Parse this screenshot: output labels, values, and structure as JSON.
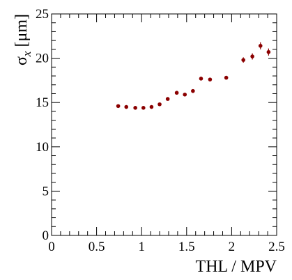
{
  "chart_data": {
    "type": "scatter",
    "xlabel": "THL / MPV",
    "ylabel": {
      "symbol": "σ",
      "subscript": "x",
      "unit": "[μm]"
    },
    "xlim": [
      0,
      2.5
    ],
    "ylim": [
      0,
      25
    ],
    "x_ticks": [
      "0",
      "0.5",
      "1",
      "1.5",
      "2",
      "2.5"
    ],
    "x_tick_values": [
      0,
      0.5,
      1,
      1.5,
      2,
      2.5
    ],
    "y_ticks": [
      "0",
      "5",
      "10",
      "15",
      "20",
      "25"
    ],
    "y_tick_values": [
      0,
      5,
      10,
      15,
      20,
      25
    ],
    "grid": false,
    "marker_color": "#8b0000",
    "series": [
      {
        "points": [
          {
            "x": 0.74,
            "y": 14.6,
            "err": 0.1
          },
          {
            "x": 0.83,
            "y": 14.5,
            "err": 0.1
          },
          {
            "x": 0.93,
            "y": 14.4,
            "err": 0.1
          },
          {
            "x": 1.02,
            "y": 14.4,
            "err": 0.1
          },
          {
            "x": 1.11,
            "y": 14.5,
            "err": 0.1
          },
          {
            "x": 1.2,
            "y": 14.8,
            "err": 0.1
          },
          {
            "x": 1.29,
            "y": 15.4,
            "err": 0.15
          },
          {
            "x": 1.39,
            "y": 16.1,
            "err": 0.15
          },
          {
            "x": 1.48,
            "y": 15.9,
            "err": 0.15
          },
          {
            "x": 1.57,
            "y": 16.3,
            "err": 0.15
          },
          {
            "x": 1.66,
            "y": 17.7,
            "err": 0.15
          },
          {
            "x": 1.76,
            "y": 17.6,
            "err": 0.15
          },
          {
            "x": 1.94,
            "y": 17.8,
            "err": 0.15
          },
          {
            "x": 2.13,
            "y": 19.8,
            "err": 0.3
          },
          {
            "x": 2.23,
            "y": 20.2,
            "err": 0.35
          },
          {
            "x": 2.32,
            "y": 21.4,
            "err": 0.4
          },
          {
            "x": 2.41,
            "y": 20.7,
            "err": 0.4
          }
        ]
      }
    ]
  }
}
